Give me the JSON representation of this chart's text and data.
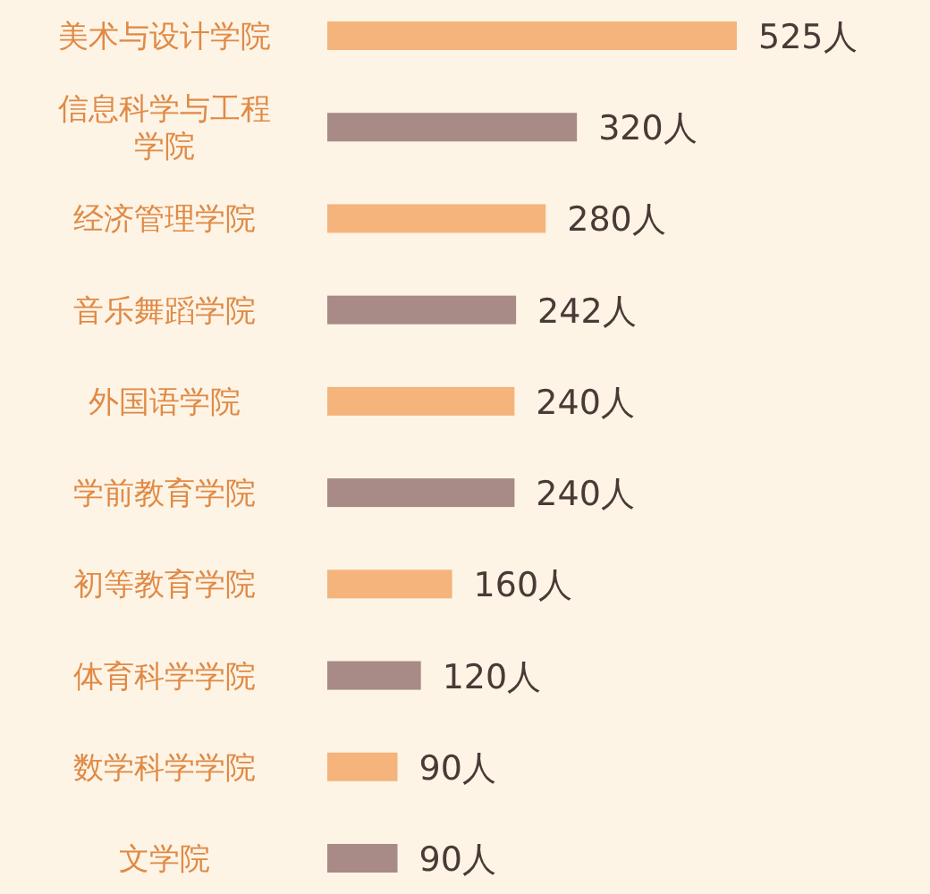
{
  "chart_data": {
    "type": "bar",
    "orientation": "horizontal",
    "categories": [
      "美术与设计学院",
      "信息科学与工程学院",
      "经济管理学院",
      "音乐舞蹈学院",
      "外国语学院",
      "学前教育学院",
      "初等教育学院",
      "体育科学学院",
      "数学科学学院",
      "文学院"
    ],
    "values": [
      525,
      320,
      280,
      242,
      240,
      240,
      160,
      120,
      90,
      90
    ],
    "colors": [
      "#f4b47c",
      "#a88a86",
      "#f4b47c",
      "#a88a86",
      "#f4b47c",
      "#a88a86",
      "#f4b47c",
      "#a88a86",
      "#f4b47c",
      "#a88a86"
    ],
    "value_labels": [
      "525人",
      "320人",
      "280人",
      "242人",
      "240人",
      "240人",
      "160人",
      "120人",
      "90人",
      "90人"
    ]
  }
}
